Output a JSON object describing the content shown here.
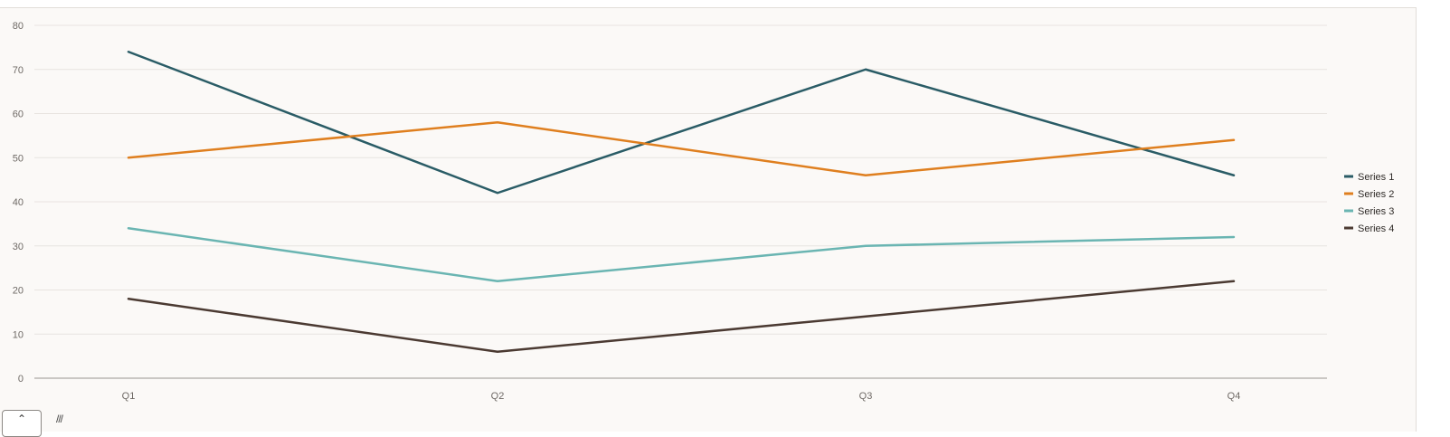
{
  "chart_data": {
    "type": "line",
    "categories": [
      "Q1",
      "Q2",
      "Q3",
      "Q4"
    ],
    "series": [
      {
        "name": "Series 1",
        "color": "#2a5c66",
        "values": [
          74,
          42,
          70,
          46
        ]
      },
      {
        "name": "Series 2",
        "color": "#df7f1f",
        "values": [
          50,
          58,
          46,
          54
        ]
      },
      {
        "name": "Series 3",
        "color": "#6ab5b2",
        "values": [
          34,
          22,
          30,
          32
        ]
      },
      {
        "name": "Series 4",
        "color": "#4b3a32",
        "values": [
          18,
          6,
          14,
          22
        ]
      }
    ],
    "yticks": [
      0,
      10,
      20,
      30,
      40,
      50,
      60,
      70,
      80
    ],
    "ylim": [
      0,
      80
    ],
    "title": "",
    "xlabel": "",
    "ylabel": "",
    "grid": true,
    "legend": "right"
  },
  "colors": {
    "plot_background": "#fbf9f7",
    "gridline": "#e8e4e0",
    "axis": "#9a9590"
  },
  "icons": {
    "corner_button": "chevron-up-icon",
    "corner_mark": "resize-grip-icon"
  }
}
